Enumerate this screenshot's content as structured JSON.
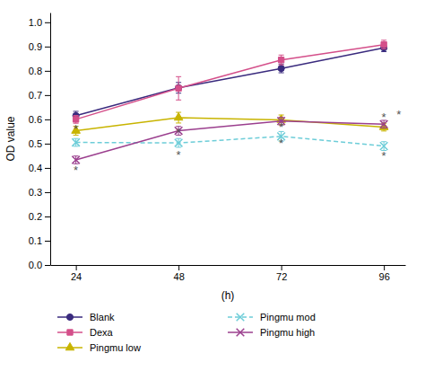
{
  "chart_data": {
    "type": "line",
    "xlabel": "(h)",
    "ylabel": "OD value",
    "x": [
      24,
      48,
      72,
      96
    ],
    "xlim": [
      18,
      101
    ],
    "ylim": [
      0,
      1.04
    ],
    "xticks": [
      24,
      48,
      72,
      96
    ],
    "yticks": [
      {
        "value": 0,
        "label": "0.0"
      },
      0.1,
      0.2,
      0.3,
      0.4,
      0.5,
      0.6,
      0.7,
      0.8,
      0.9,
      {
        "value": 1,
        "label": "1.0"
      }
    ],
    "grid": false,
    "legend": "bottom",
    "series": [
      {
        "name": "Blank",
        "color": "#3a2b7e",
        "marker": "circle",
        "line_style": "solid",
        "values": [
          0.615,
          0.73,
          0.81,
          0.895
        ],
        "errors": [
          0.018,
          0.022,
          0.018,
          0.016
        ]
      },
      {
        "name": "Dexa",
        "color": "#d44f8a",
        "marker": "square",
        "line_style": "solid",
        "values": [
          0.6,
          0.728,
          0.845,
          0.908
        ],
        "errors": [
          0.016,
          0.048,
          0.02,
          0.018
        ]
      },
      {
        "name": "Pingmu low",
        "color": "#c8b400",
        "marker": "triangle",
        "line_style": "solid",
        "values": [
          0.553,
          0.607,
          0.598,
          0.568
        ],
        "errors": [
          0.018,
          0.022,
          0.02,
          0.016
        ]
      },
      {
        "name": "Pingmu mod",
        "color": "#6dcdd8",
        "marker": "x",
        "line_style": "dashed",
        "values": [
          0.505,
          0.503,
          0.53,
          0.49
        ],
        "errors": [
          0.016,
          0.018,
          0.02,
          0.018
        ]
      },
      {
        "name": "Pingmu high",
        "color": "#9b3f8e",
        "marker": "x",
        "line_style": "solid",
        "values": [
          0.433,
          0.553,
          0.593,
          0.58
        ],
        "errors": [
          0.016,
          0.018,
          0.016,
          0.016
        ]
      }
    ],
    "annotations": [
      {
        "x": 24,
        "y": 0.562,
        "text": "*"
      },
      {
        "x": 24,
        "y": 0.39,
        "text": "*"
      },
      {
        "x": 48,
        "y": 0.545,
        "text": "*"
      },
      {
        "x": 48,
        "y": 0.453,
        "text": "*"
      },
      {
        "x": 72,
        "y": 0.567,
        "text": "*"
      },
      {
        "x": 72,
        "y": 0.5,
        "text": "*"
      },
      {
        "x": 96,
        "y": 0.61,
        "text": "*"
      },
      {
        "x": 96,
        "y": 0.45,
        "text": "*"
      },
      {
        "x": 99.5,
        "y": 0.62,
        "text": "*"
      }
    ]
  }
}
